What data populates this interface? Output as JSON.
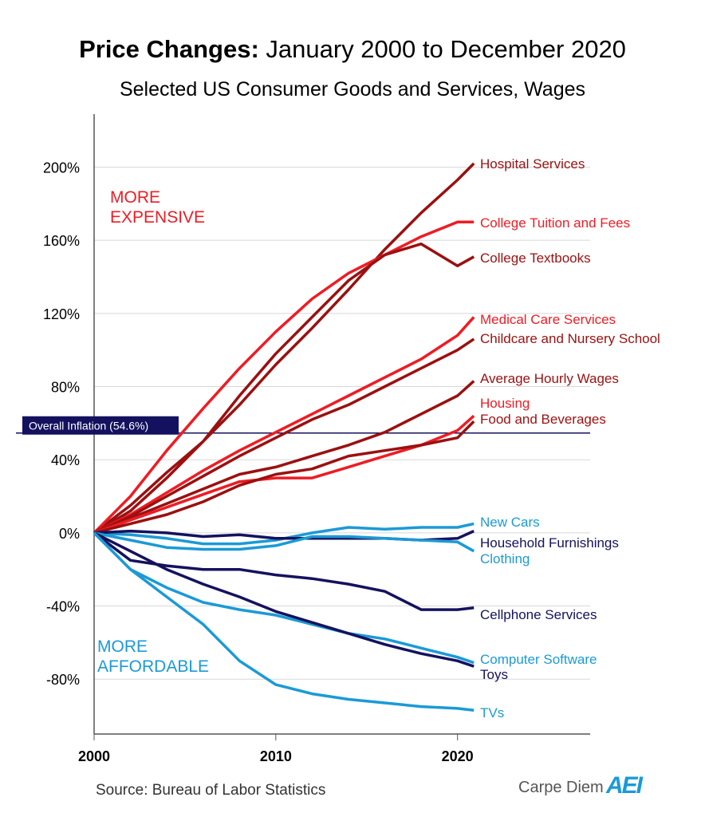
{
  "chart_data": {
    "type": "line",
    "title_bold": "Price Changes:",
    "title_rest": "January 2000 to December 2020",
    "subtitle": "Selected US Consumer Goods and Services, Wages",
    "xlim": [
      2000,
      2027.3
    ],
    "ylim": [
      -110,
      229
    ],
    "x_ticks": [
      2000,
      2010,
      2020
    ],
    "y_ticks": [
      -80,
      -40,
      0,
      40,
      80,
      120,
      160,
      200
    ],
    "y_tick_format": "percent",
    "grid": "horizontal",
    "annotations": {
      "more_expensive": [
        "MORE",
        "EXPENSIVE"
      ],
      "more_affordable": [
        "MORE",
        "AFFORDABLE"
      ]
    },
    "annotation_colors": {
      "expensive": "#ee1c24",
      "affordable": "#1b9ad6"
    },
    "reference_line": {
      "label": "Overall Inflation (54.6%)",
      "value": 54.6,
      "color": "#14125e"
    },
    "x": [
      2000,
      2002,
      2004,
      2006,
      2008,
      2010,
      2012,
      2014,
      2016,
      2018,
      2020,
      2020.9
    ],
    "series": [
      {
        "name": "Hospital Services",
        "color": "#9b1010",
        "values": [
          0,
          15,
          33,
          50,
          70,
          92,
          112,
          133,
          155,
          175,
          193,
          202
        ]
      },
      {
        "name": "College Tuition and Fees",
        "color": "#ee1c24",
        "values": [
          0,
          20,
          45,
          68,
          90,
          110,
          128,
          142,
          152,
          162,
          170,
          170
        ]
      },
      {
        "name": "College Textbooks",
        "color": "#9b1010",
        "values": [
          0,
          12,
          30,
          50,
          75,
          98,
          118,
          138,
          152,
          158,
          146,
          151
        ]
      },
      {
        "name": "Medical Care Services",
        "color": "#ee1c24",
        "values": [
          0,
          10,
          22,
          34,
          45,
          55,
          65,
          75,
          85,
          95,
          108,
          118
        ]
      },
      {
        "name": "Childcare and Nursery School",
        "color": "#9b1010",
        "values": [
          0,
          9,
          20,
          31,
          42,
          52,
          62,
          70,
          80,
          90,
          100,
          106
        ]
      },
      {
        "name": "Average Hourly Wages",
        "color": "#9b1010",
        "values": [
          0,
          8,
          16,
          24,
          32,
          36,
          42,
          48,
          55,
          65,
          75,
          83
        ]
      },
      {
        "name": "Housing",
        "color": "#ee1c24",
        "values": [
          0,
          7,
          14,
          21,
          28,
          30,
          30,
          36,
          42,
          48,
          56,
          64
        ]
      },
      {
        "name": "Food and Beverages",
        "color": "#9b1010",
        "values": [
          0,
          5,
          10,
          17,
          26,
          32,
          35,
          42,
          45,
          48,
          52,
          61
        ]
      },
      {
        "name": "New Cars",
        "color": "#1b9ad6",
        "values": [
          0,
          -1,
          -3,
          -6,
          -6,
          -4,
          0,
          3,
          2,
          3,
          3,
          5
        ]
      },
      {
        "name": "Household Furnishings",
        "color": "#14125e",
        "values": [
          0,
          1,
          0,
          -2,
          -1,
          -3,
          -3,
          -3,
          -3,
          -4,
          -3,
          1
        ]
      },
      {
        "name": "Clothing",
        "color": "#1b9ad6",
        "values": [
          0,
          -4,
          -8,
          -9,
          -9,
          -7,
          -2,
          -2,
          -3,
          -4,
          -5,
          -10
        ]
      },
      {
        "name": "Cellphone Services",
        "color": "#14125e",
        "values": [
          0,
          -15,
          -18,
          -20,
          -20,
          -23,
          -25,
          -28,
          -32,
          -42,
          -42,
          -41
        ]
      },
      {
        "name": "Computer Software",
        "color": "#1b9ad6",
        "values": [
          0,
          -20,
          -30,
          -38,
          -42,
          -45,
          -50,
          -55,
          -58,
          -63,
          -68,
          -71
        ]
      },
      {
        "name": "Toys",
        "color": "#14125e",
        "values": [
          0,
          -10,
          -20,
          -28,
          -35,
          -43,
          -49,
          -55,
          -61,
          -66,
          -70,
          -73
        ]
      },
      {
        "name": "TVs",
        "color": "#1b9ad6",
        "values": [
          0,
          -20,
          -35,
          -50,
          -70,
          -83,
          -88,
          -91,
          -93,
          -95,
          -96,
          -97
        ]
      }
    ]
  },
  "footer": {
    "source": "Source: Bureau of Labor Statistics",
    "brand": "Carpe Diem",
    "logo_text": "AEI"
  }
}
